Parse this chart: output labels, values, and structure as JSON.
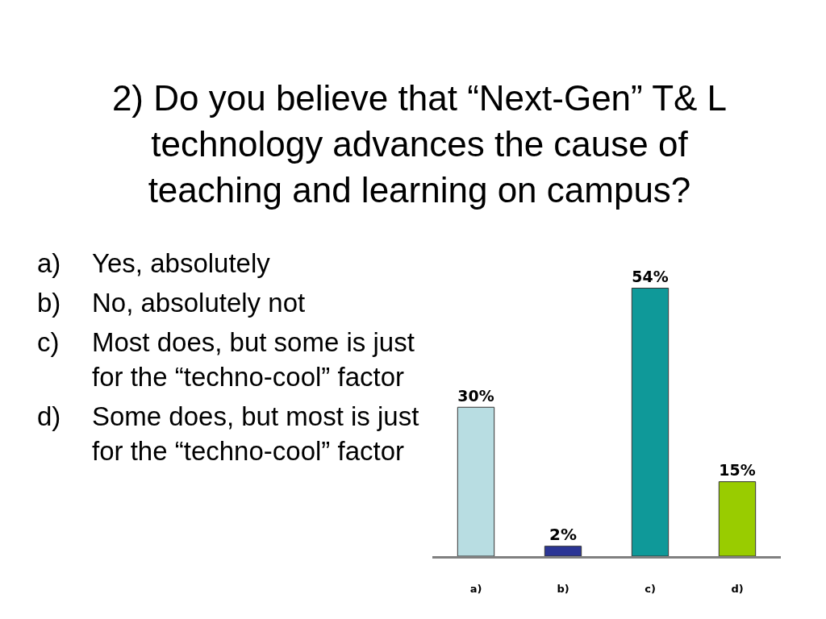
{
  "chart_data": {
    "type": "bar",
    "title": "2) Do you believe that “Next-Gen” T& L technology advances the cause of teaching and learning on campus?",
    "categories": [
      "a)",
      "b)",
      "c)",
      "d)"
    ],
    "values": [
      30,
      2,
      54,
      15
    ],
    "colors": [
      "#b8dde2",
      "#2b3595",
      "#0f9999",
      "#99cc00"
    ],
    "value_labels": [
      "30%",
      "2%",
      "54%",
      "15%"
    ],
    "annotations": [
      "a) Yes, absolutely",
      "b) No, absolutely not",
      "c) Most does, but some is just for the “techno-cool” factor",
      "d) Some does, but most is just for the “techno-cool” factor"
    ]
  }
}
